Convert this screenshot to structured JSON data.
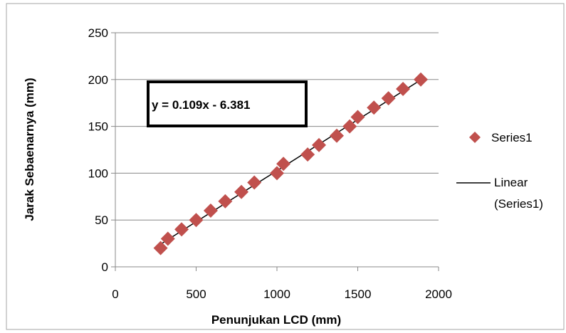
{
  "chart_data": {
    "type": "scatter",
    "title": "",
    "xlabel": "Penunjukan LCD (mm)",
    "ylabel": "Jarak Sebaenarnya (mm)",
    "xlim": [
      0,
      2000
    ],
    "ylim": [
      0,
      250
    ],
    "x_ticks": [
      0,
      500,
      1000,
      1500,
      2000
    ],
    "y_ticks": [
      0,
      50,
      100,
      150,
      200,
      250
    ],
    "x_tick_labels": [
      "0",
      "500",
      "1000",
      "1500",
      "2000"
    ],
    "y_tick_labels": [
      "0",
      "50",
      "100",
      "150",
      "200",
      "250"
    ],
    "grid": "horizontal",
    "legend_position": "right",
    "series": [
      {
        "name": "Series1",
        "marker": "diamond",
        "color": "#c0504d",
        "x": [
          280,
          325,
          410,
          500,
          590,
          680,
          780,
          860,
          1000,
          1040,
          1190,
          1260,
          1370,
          1450,
          1500,
          1600,
          1690,
          1780,
          1890
        ],
        "y": [
          20,
          30,
          40,
          50,
          60,
          70,
          80,
          90,
          100,
          110,
          120,
          130,
          140,
          150,
          160,
          170,
          180,
          190,
          200
        ]
      }
    ],
    "trendline": {
      "name": "Linear (Series1)",
      "legend_lines": [
        "Linear",
        "(Series1)"
      ],
      "color": "#000000",
      "equation": "y = 0.109x - 6.381",
      "slope": 0.109,
      "intercept": -6.381,
      "x_range": [
        280,
        1890
      ]
    }
  }
}
